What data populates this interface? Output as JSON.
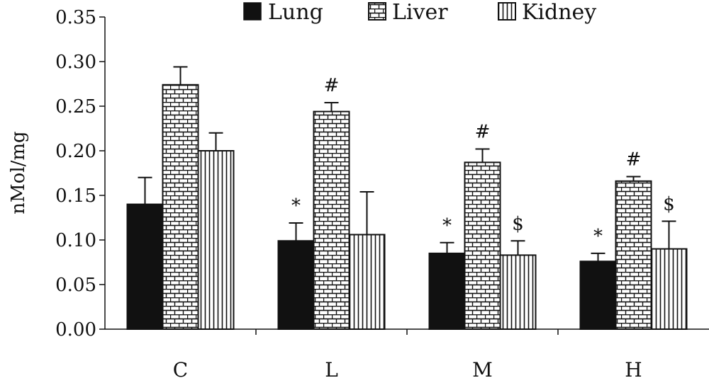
{
  "chart_data": {
    "type": "bar",
    "ylabel": "nMol/mg",
    "ylim": [
      0,
      0.35
    ],
    "yticks": [
      "0.00",
      "0.05",
      "0.10",
      "0.15",
      "0.20",
      "0.25",
      "0.30",
      "0.35"
    ],
    "ytick_values": [
      0,
      0.05,
      0.1,
      0.15,
      0.2,
      0.25,
      0.3,
      0.35
    ],
    "categories": [
      "C",
      "L",
      "M",
      "H"
    ],
    "legend_position": "top",
    "series": [
      {
        "name": "Lung",
        "pattern": "solid-black",
        "values": [
          0.14,
          0.099,
          0.085,
          0.076
        ],
        "errors": [
          0.03,
          0.02,
          0.012,
          0.009
        ],
        "annotations": [
          "",
          "*",
          "*",
          "*"
        ]
      },
      {
        "name": "Liver",
        "pattern": "brick",
        "values": [
          0.274,
          0.244,
          0.187,
          0.166
        ],
        "errors": [
          0.02,
          0.01,
          0.015,
          0.005
        ],
        "annotations": [
          "",
          "#",
          "#",
          "#"
        ]
      },
      {
        "name": "Kidney",
        "pattern": "vertical-stripes",
        "values": [
          0.2,
          0.106,
          0.083,
          0.09
        ],
        "errors": [
          0.02,
          0.048,
          0.016,
          0.031
        ],
        "annotations": [
          "",
          "",
          "$",
          "$"
        ]
      }
    ],
    "colors": {
      "ink": "#111111",
      "background": "#ffffff"
    }
  }
}
